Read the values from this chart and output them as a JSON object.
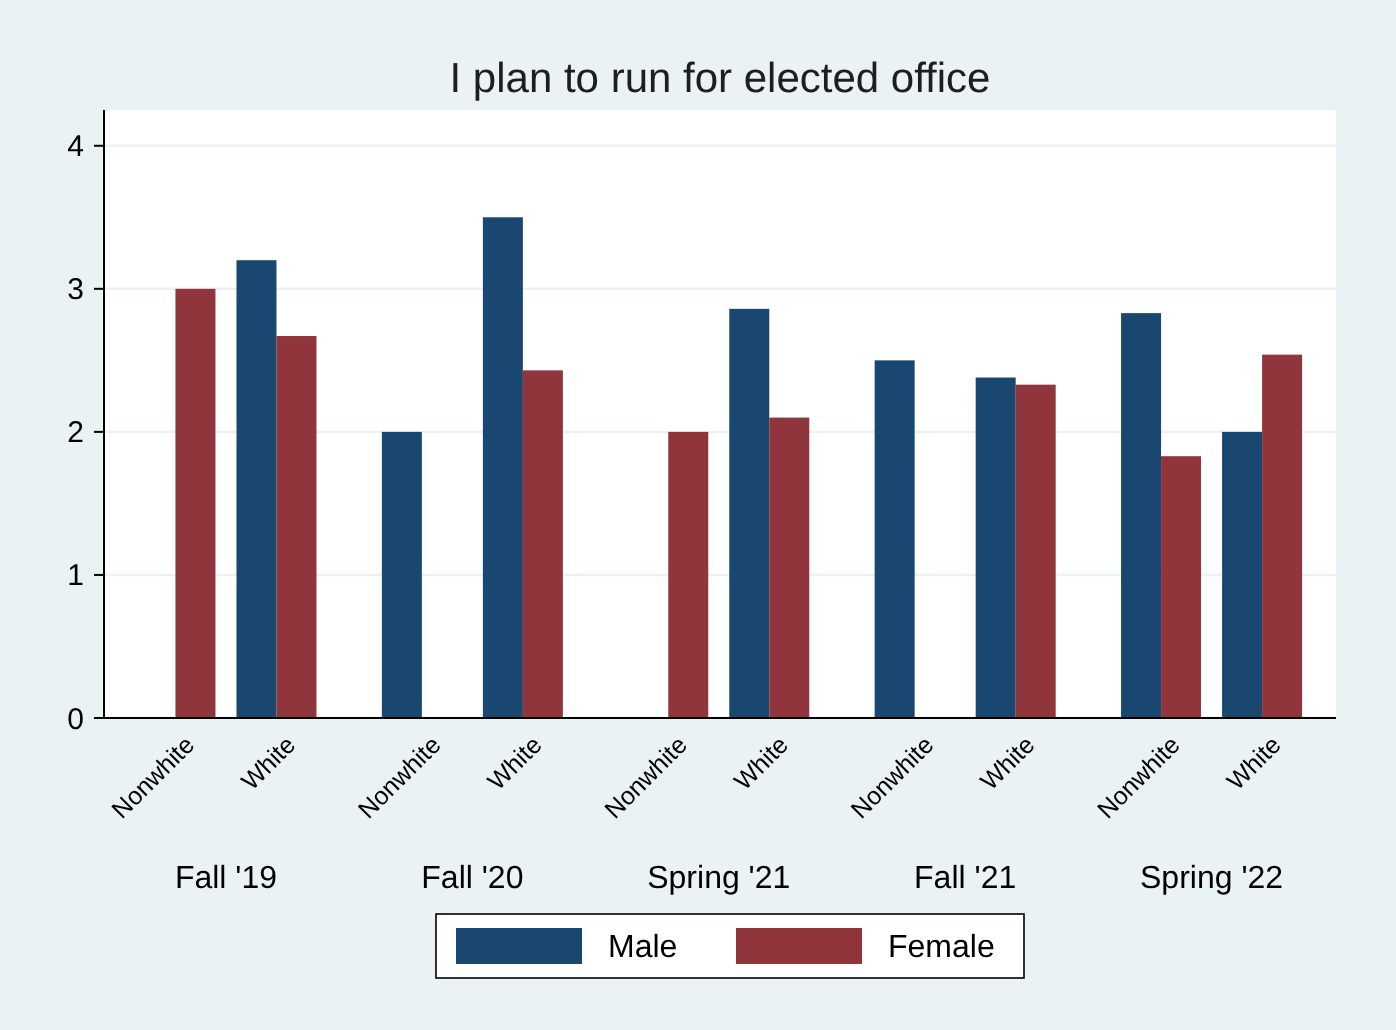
{
  "chart_data": {
    "type": "bar",
    "title": "I plan to run for elected office",
    "categories": [
      "Nonwhite",
      "White",
      "Nonwhite",
      "White",
      "Nonwhite",
      "White",
      "Nonwhite",
      "White",
      "Nonwhite",
      "White"
    ],
    "series": [
      {
        "name": "Male",
        "color": "#1a476f",
        "values": [
          null,
          3.2,
          2.0,
          3.5,
          null,
          2.86,
          2.5,
          2.38,
          2.83,
          2.0
        ]
      },
      {
        "name": "Female",
        "color": "#90353b",
        "values": [
          3.0,
          2.67,
          null,
          2.43,
          2.0,
          2.1,
          null,
          2.33,
          1.83,
          2.54
        ]
      }
    ],
    "annotations": [
      "Fall '19",
      "Fall '20",
      "Spring '21",
      "Fall '21",
      "Spring '22"
    ],
    "ylim": [
      0,
      4.25
    ],
    "yticks": [
      0,
      1,
      2,
      3,
      4
    ],
    "grid": "y",
    "legend": "bottom"
  }
}
